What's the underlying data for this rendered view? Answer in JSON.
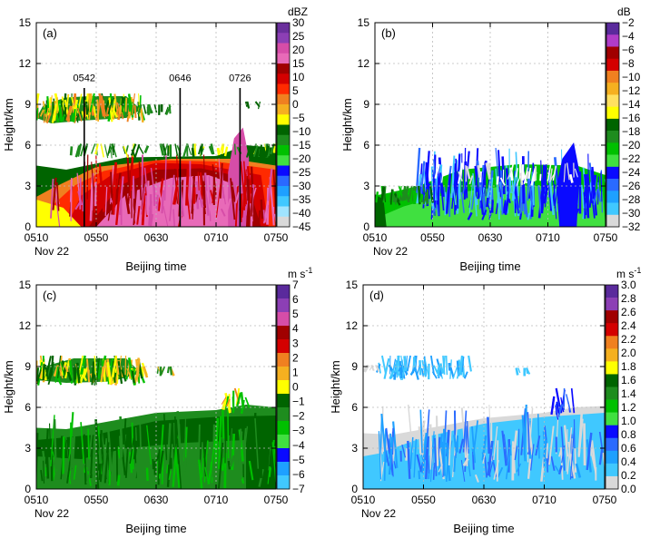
{
  "chart_data": [
    {
      "type": "heatmap",
      "panel_label": "(a)",
      "ylabel": "Height/km",
      "xlabel": "Beijing time",
      "date_label": "Nov 22",
      "x_ticks": [
        "0510",
        "0550",
        "0630",
        "0710",
        "0750"
      ],
      "y_ticks": [
        "0",
        "3",
        "6",
        "9",
        "12",
        "15"
      ],
      "ylim": [
        0,
        15
      ],
      "xlim_minutes": [
        0,
        160
      ],
      "colorbar_unit": "dBZ",
      "colorbar_labels": [
        "30",
        "25",
        "20",
        "15",
        "10",
        "5",
        "0",
        "−5",
        "−10",
        "−15",
        "−20",
        "−25",
        "−30",
        "−35",
        "−40",
        "−45"
      ],
      "colorbar_colors": [
        "#6a2f9c",
        "#8c3fb5",
        "#d64da8",
        "#e86ab8",
        "#a00000",
        "#d40000",
        "#ff2a00",
        "#f08020",
        "#f5b020",
        "#ffff00",
        "#006400",
        "#1e8c1e",
        "#00c000",
        "#40e040",
        "#0a0aff",
        "#2a6aff",
        "#1ea0ff",
        "#40c8ff",
        "#a0e4ff",
        "#d9d9d9"
      ],
      "markers": [
        {
          "label": "0542",
          "minute": 32
        },
        {
          "label": "0646",
          "minute": 96
        },
        {
          "label": "0726",
          "minute": 136
        }
      ],
      "grid": true
    },
    {
      "type": "heatmap",
      "panel_label": "(b)",
      "ylabel": "Height/km",
      "xlabel": "Beijing time",
      "date_label": "Nov 22",
      "x_ticks": [
        "0510",
        "0550",
        "0630",
        "0710",
        "0750"
      ],
      "y_ticks": [
        "0",
        "3",
        "6",
        "9",
        "12",
        "15"
      ],
      "ylim": [
        0,
        15
      ],
      "colorbar_unit": "dB",
      "colorbar_labels": [
        "−2",
        "−4",
        "−6",
        "−8",
        "−10",
        "−12",
        "−14",
        "−16",
        "−18",
        "−20",
        "−22",
        "−24",
        "−26",
        "−28",
        "−30",
        "−32"
      ],
      "colorbar_colors": [
        "#5a2a9c",
        "#b03cc8",
        "#a00000",
        "#d40000",
        "#f08020",
        "#f5b020",
        "#ffe060",
        "#ffff00",
        "#006400",
        "#1e8c1e",
        "#00c000",
        "#40e040",
        "#0a0aff",
        "#2a6aff",
        "#1ea0ff",
        "#40c8ff",
        "#d9d9d9"
      ],
      "grid": true
    },
    {
      "type": "heatmap",
      "panel_label": "(c)",
      "ylabel": "Height/km",
      "xlabel": "Beijing time",
      "date_label": "Nov 22",
      "x_ticks": [
        "0510",
        "0550",
        "0630",
        "0710",
        "0750"
      ],
      "y_ticks": [
        "0",
        "3",
        "6",
        "9",
        "12",
        "15"
      ],
      "ylim": [
        0,
        15
      ],
      "colorbar_unit": "m s",
      "colorbar_unit_exp": "-1",
      "colorbar_labels": [
        "7",
        "6",
        "5",
        "4",
        "3",
        "2",
        "1",
        "0",
        "−1",
        "−2",
        "−3",
        "−4",
        "−5",
        "−6",
        "−7"
      ],
      "colorbar_colors": [
        "#5a2a9c",
        "#8c3fb5",
        "#d64da8",
        "#a00000",
        "#d40000",
        "#f08020",
        "#f5b020",
        "#ffff00",
        "#006400",
        "#1e8c1e",
        "#00c000",
        "#40e040",
        "#0a0aff",
        "#1ea0ff",
        "#40c8ff"
      ],
      "grid": true
    },
    {
      "type": "heatmap",
      "panel_label": "(d)",
      "ylabel": "Height/km",
      "xlabel": "Beijing time",
      "date_label": "Nov 22",
      "x_ticks": [
        "0510",
        "0550",
        "0630",
        "0710",
        "0750"
      ],
      "y_ticks": [
        "0",
        "3",
        "6",
        "9",
        "12",
        "15"
      ],
      "ylim": [
        0,
        15
      ],
      "colorbar_unit": "m s",
      "colorbar_unit_exp": "-1",
      "colorbar_labels": [
        "3.0",
        "2.8",
        "2.6",
        "2.4",
        "2.2",
        "2.0",
        "1.8",
        "1.6",
        "1.4",
        "1.2",
        "1.0",
        "0.8",
        "0.6",
        "0.4",
        "0.2",
        "0.0"
      ],
      "colorbar_colors": [
        "#5a2a9c",
        "#8c3fb5",
        "#a00000",
        "#d40000",
        "#f08020",
        "#f5b020",
        "#ffff00",
        "#006400",
        "#1e8c1e",
        "#00c000",
        "#40e040",
        "#0a0aff",
        "#2a6aff",
        "#1ea0ff",
        "#40c8ff",
        "#d9d9d9"
      ],
      "grid": true
    }
  ]
}
